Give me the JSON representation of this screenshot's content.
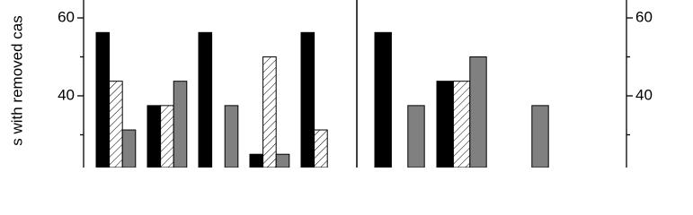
{
  "y_axis_label": "s with removed cas",
  "chart_data": [
    {
      "type": "bar",
      "categories": [
        null,
        null,
        null,
        null,
        null
      ],
      "series": [
        {
          "color": "#000000",
          "values": [
            56.25,
            37.5,
            56.25,
            25,
            56.25
          ]
        },
        {
          "color": "#ffffff",
          "hatch": true,
          "values": [
            43.75,
            37.5,
            null,
            50,
            31.25
          ]
        },
        {
          "color": "#808080",
          "values": [
            31.25,
            43.75,
            37.5,
            25,
            null
          ]
        }
      ],
      "ylim": [
        21.6,
        64.6
      ],
      "yticks": [
        40,
        60
      ],
      "yminorticks": [
        30,
        50
      ],
      "yaxis_side": "left"
    },
    {
      "type": "bar",
      "categories": [
        null,
        null,
        null
      ],
      "series": [
        {
          "color": "#000000",
          "values": [
            56.25,
            43.75,
            null
          ]
        },
        {
          "color": "#ffffff",
          "hatch": true,
          "values": [
            null,
            43.75,
            null
          ]
        },
        {
          "color": "#808080",
          "values": [
            37.5,
            50,
            37.5
          ]
        }
      ],
      "ylim": [
        21.6,
        64.6
      ],
      "yticks": [
        40,
        60
      ],
      "yminorticks": [
        30,
        50
      ],
      "yaxis_side": "right"
    }
  ]
}
